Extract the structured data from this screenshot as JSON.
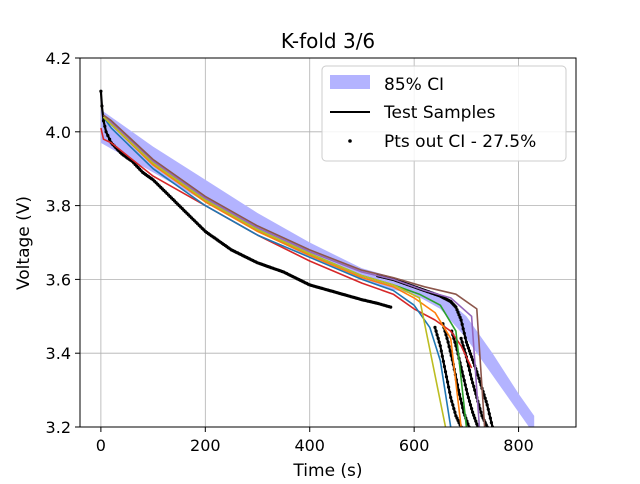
{
  "chart_data": {
    "type": "line",
    "title": "K-fold 3/6",
    "xlabel": "Time (s)",
    "ylabel": "Voltage (V)",
    "xlim": [
      -40,
      910
    ],
    "ylim": [
      3.2,
      4.2
    ],
    "xticks": [
      0,
      200,
      400,
      600,
      800
    ],
    "yticks": [
      3.2,
      3.4,
      3.6,
      3.8,
      4.0,
      4.2
    ],
    "xtick_labels": [
      "0",
      "200",
      "400",
      "600",
      "800"
    ],
    "ytick_labels": [
      "3.2",
      "3.4",
      "3.6",
      "3.8",
      "4.0",
      "4.2"
    ],
    "grid": true,
    "legend": {
      "placement": "top-right",
      "entries": [
        "85% CI",
        "Test Samples",
        "Pts out CI - 27.5%"
      ]
    },
    "colors": {
      "ci_band": "#b3b3ff",
      "test_samples": "#000000",
      "prediction_blue": "#1f77b4",
      "prediction_orange": "#ff7f0e",
      "prediction_green": "#2ca02c",
      "prediction_red": "#d62728",
      "prediction_purple": "#9467bd",
      "prediction_brown": "#8c564b",
      "prediction_olive": "#bcbd22"
    },
    "ci_band": {
      "name": "85% CI",
      "x": [
        0,
        50,
        100,
        200,
        300,
        400,
        500,
        550,
        600,
        650,
        700,
        750,
        800,
        830
      ],
      "lower": [
        3.97,
        3.93,
        3.89,
        3.81,
        3.73,
        3.66,
        3.6,
        3.575,
        3.56,
        3.52,
        3.44,
        3.34,
        3.24,
        3.18
      ],
      "upper": [
        4.06,
        4.01,
        3.96,
        3.87,
        3.78,
        3.7,
        3.63,
        3.61,
        3.585,
        3.56,
        3.5,
        3.4,
        3.29,
        3.23
      ]
    },
    "test_samples": [
      {
        "x": [
          0,
          2,
          5,
          10,
          20,
          40,
          60,
          80,
          100,
          150,
          200,
          250,
          300,
          350,
          400,
          450,
          500,
          530,
          555
        ],
        "y": [
          4.11,
          4.07,
          4.03,
          4.0,
          3.97,
          3.94,
          3.92,
          3.89,
          3.87,
          3.8,
          3.73,
          3.68,
          3.645,
          3.62,
          3.585,
          3.565,
          3.545,
          3.535,
          3.525
        ]
      },
      {
        "x": [
          530,
          560,
          600,
          630,
          650,
          670,
          680,
          690,
          700,
          720,
          740,
          750
        ],
        "y": [
          3.61,
          3.6,
          3.58,
          3.565,
          3.555,
          3.54,
          3.525,
          3.49,
          3.43,
          3.35,
          3.26,
          3.2
        ]
      },
      {
        "x": [
          640,
          650,
          660,
          670,
          680,
          690
        ],
        "y": [
          3.47,
          3.42,
          3.35,
          3.28,
          3.23,
          3.2
        ]
      },
      {
        "x": [
          655,
          665,
          675,
          685,
          695,
          705
        ],
        "y": [
          3.48,
          3.43,
          3.37,
          3.3,
          3.24,
          3.2
        ]
      },
      {
        "x": [
          672,
          682,
          692,
          702,
          712,
          722
        ],
        "y": [
          3.46,
          3.41,
          3.35,
          3.29,
          3.24,
          3.2
        ]
      },
      {
        "x": [
          690,
          700,
          710,
          720,
          730,
          740
        ],
        "y": [
          3.44,
          3.39,
          3.33,
          3.28,
          3.23,
          3.2
        ]
      }
    ],
    "out_ci_fraction": "27.5%",
    "series": [
      {
        "color": "#d62728",
        "x": [
          0,
          5,
          20,
          100,
          200,
          300,
          400,
          500,
          560,
          600,
          640,
          670,
          690,
          710
        ],
        "y": [
          4.01,
          3.98,
          3.97,
          3.88,
          3.8,
          3.72,
          3.65,
          3.59,
          3.56,
          3.52,
          3.49,
          3.46,
          3.42,
          3.36
        ]
      },
      {
        "color": "#1f77b4",
        "x": [
          5,
          20,
          100,
          200,
          300,
          400,
          500,
          560,
          600,
          630,
          650,
          670
        ],
        "y": [
          4.04,
          4.01,
          3.9,
          3.8,
          3.72,
          3.66,
          3.6,
          3.57,
          3.53,
          3.47,
          3.38,
          3.2
        ]
      },
      {
        "color": "#ff7f0e",
        "x": [
          5,
          20,
          100,
          200,
          300,
          400,
          500,
          560,
          600,
          640,
          670,
          690
        ],
        "y": [
          4.04,
          4.02,
          3.91,
          3.81,
          3.73,
          3.665,
          3.605,
          3.58,
          3.55,
          3.51,
          3.44,
          3.2
        ]
      },
      {
        "color": "#2ca02c",
        "x": [
          5,
          20,
          100,
          200,
          300,
          400,
          500,
          560,
          610,
          650,
          680,
          700
        ],
        "y": [
          4.04,
          4.02,
          3.915,
          3.815,
          3.735,
          3.67,
          3.61,
          3.585,
          3.56,
          3.53,
          3.46,
          3.2
        ]
      },
      {
        "color": "#9467bd",
        "x": [
          5,
          20,
          100,
          200,
          300,
          400,
          500,
          560,
          620,
          670,
          710,
          725
        ],
        "y": [
          4.04,
          4.025,
          3.92,
          3.82,
          3.74,
          3.675,
          3.62,
          3.6,
          3.57,
          3.55,
          3.5,
          3.2
        ]
      },
      {
        "color": "#8c564b",
        "x": [
          5,
          20,
          100,
          200,
          300,
          400,
          500,
          560,
          620,
          680,
          720,
          735
        ],
        "y": [
          4.045,
          4.03,
          3.925,
          3.825,
          3.745,
          3.68,
          3.625,
          3.605,
          3.58,
          3.56,
          3.52,
          3.2
        ]
      },
      {
        "color": "#bcbd22",
        "x": [
          5,
          20,
          100,
          200,
          300,
          400,
          500,
          560,
          610,
          660
        ],
        "y": [
          4.04,
          4.02,
          3.915,
          3.815,
          3.735,
          3.67,
          3.61,
          3.585,
          3.55,
          3.2
        ]
      }
    ]
  }
}
